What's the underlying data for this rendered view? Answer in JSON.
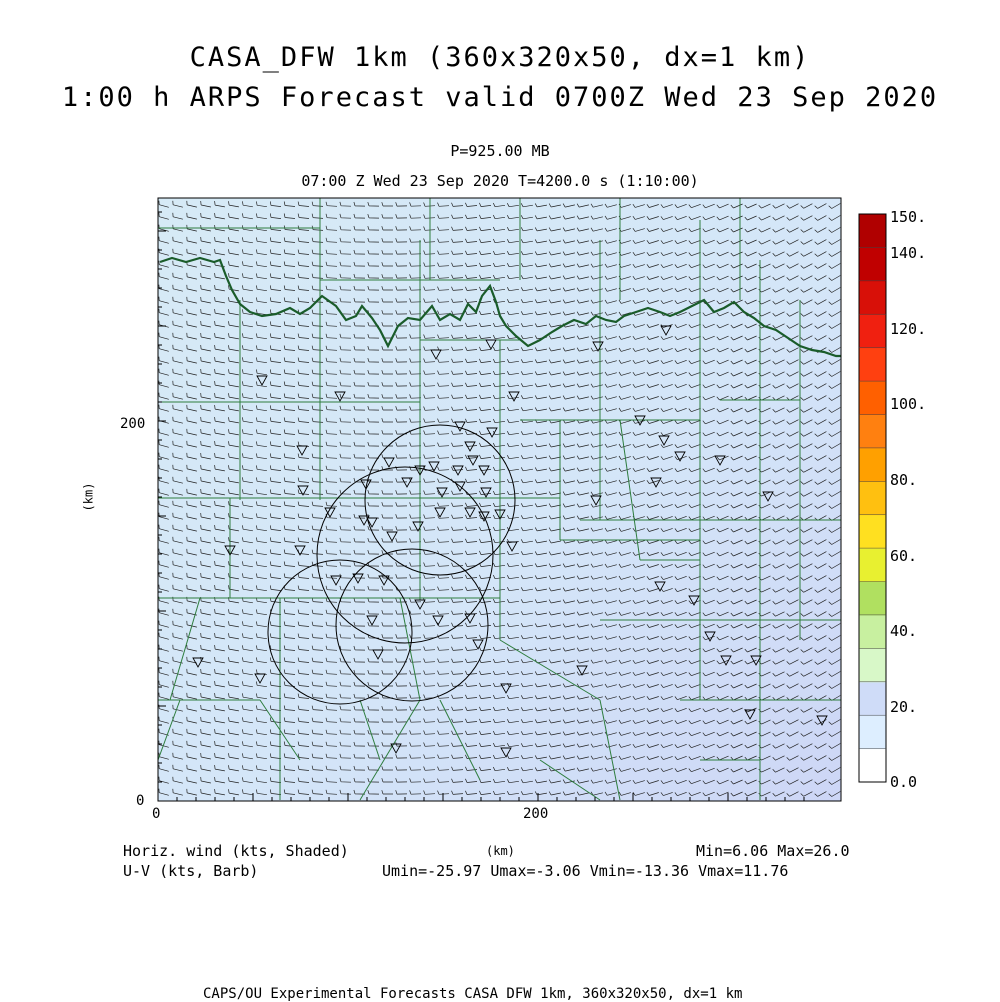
{
  "header": {
    "title_line1": "CASA_DFW 1km (360x320x50, dx=1 km)",
    "title_line2": "1:00 h ARPS Forecast valid 0700Z Wed 23 Sep 2020",
    "level": "P=925.00 MB",
    "time": "07:00 Z Wed 23 Sep 2020   T=4200.0 s (1:10:00)"
  },
  "axes": {
    "x_tick_labels": [
      "0",
      "200"
    ],
    "y_tick_labels": [
      "0",
      "200"
    ],
    "x_label": "(km)",
    "y_label": "(km)"
  },
  "colorbar": {
    "labels": [
      "150.",
      "140.",
      "120.",
      "100.",
      "80.",
      "60.",
      "40.",
      "20.",
      "0.0"
    ],
    "colors": [
      "#ffffff",
      "#ddeeff",
      "#cfdcf8",
      "#d8f8c8",
      "#c8f0a0",
      "#b0e060",
      "#e8f030",
      "#ffe020",
      "#ffc010",
      "#ffa000",
      "#ff8010",
      "#ff6000",
      "#ff4010",
      "#f02010",
      "#d81008",
      "#c00000",
      "#b00000"
    ]
  },
  "legend": {
    "field1": "Horiz. wind (kts, Shaded)",
    "field2": "U-V (kts, Barb)",
    "minmax": "Min=6.06 Max=26.0",
    "uv_stats": "Umin=-25.97 Umax=-3.06 Vmin=-13.36 Vmax=11.76"
  },
  "footer": {
    "text": "CAPS/OU Experimental Forecasts  CASA DFW 1km, 360x320x50, dx=1 km"
  },
  "map": {
    "background_color": "#d4e8f4",
    "county_line_color": "#2e7d3e",
    "river_color": "#1a5c2a",
    "barb_color": "#222222",
    "radar_ring_color": "#000000"
  }
}
